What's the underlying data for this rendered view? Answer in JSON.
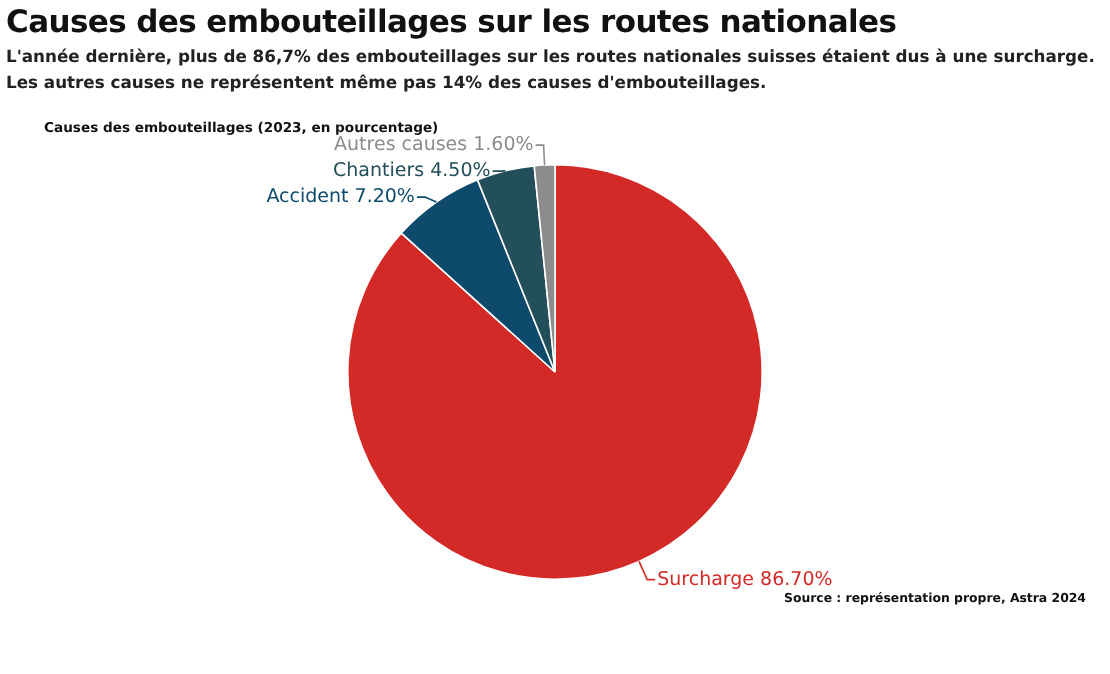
{
  "chart_data": {
    "type": "pie",
    "title": "Causes des embouteillages sur les routes nationales",
    "subtitle": "L'année dernière, plus de 86,7% des embouteillages sur les routes nationales suisses étaient dus à une surcharge. Les autres causes ne représentent même pas 14% des causes d'embouteillages.",
    "annotations": [
      "Causes des embouteillages (2023, en pourcentage)",
      "Source : représentation propre, Astra 2024"
    ],
    "categories": [
      "Surcharge",
      "Accident",
      "Chantiers",
      "Autres causes"
    ],
    "values": [
      86.7,
      7.2,
      4.5,
      1.6
    ],
    "value_labels": [
      "86.70%",
      "7.20%",
      "4.50%",
      "1.60%"
    ],
    "colors": [
      "#d42a27",
      "#0d4a6b",
      "#234f5a",
      "#8c8c8c"
    ],
    "legend": false
  }
}
